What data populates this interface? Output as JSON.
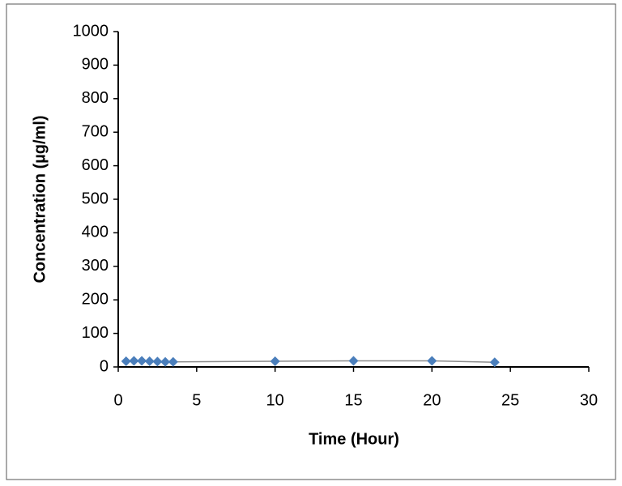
{
  "chart_data": {
    "type": "scatter",
    "x_label": "Time (Hour)",
    "y_label": "Concentration (µg/ml)",
    "x": [
      0.5,
      1,
      1.5,
      2,
      2.5,
      3,
      3.5,
      10,
      15,
      20,
      24
    ],
    "series": [
      {
        "color": "#4a7ebb",
        "line_color": "#8c8c8c",
        "values": [
          17,
          18,
          18,
          17,
          16,
          15,
          15,
          17,
          18,
          18,
          14
        ]
      }
    ],
    "xlim": [
      0,
      30
    ],
    "xticks": [
      0,
      5,
      10,
      15,
      20,
      25,
      30
    ],
    "ylim": [
      0,
      1000
    ],
    "yticks": [
      0,
      100,
      200,
      300,
      400,
      500,
      600,
      700,
      800,
      900,
      1000
    ],
    "grid": false
  }
}
